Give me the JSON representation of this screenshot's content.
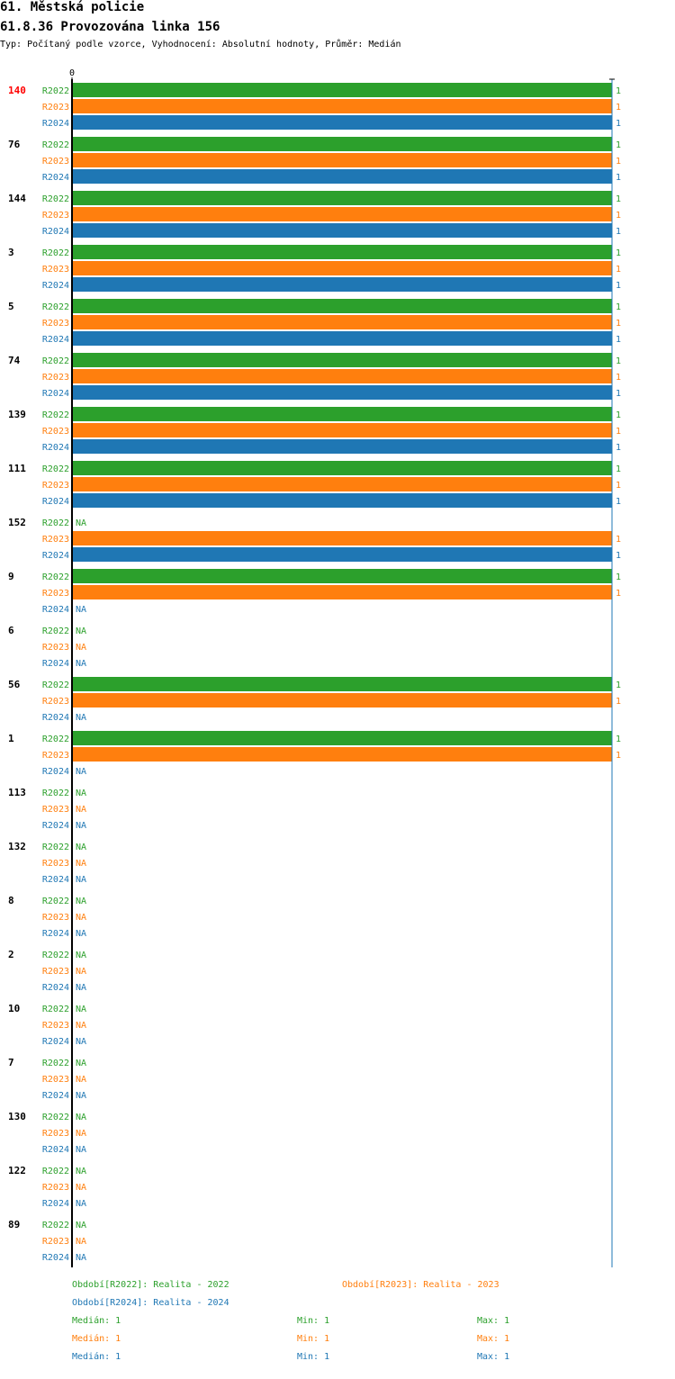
{
  "header": {
    "title": "61. Městská policie",
    "subtitle": "61.8.36 Provozována linka 156",
    "info": "Typ: Počítaný podle vzorce, Vyhodnocení: Absolutní hodnoty, Průměr: Medián"
  },
  "colors": {
    "R2022": "#2ca02c",
    "R2023": "#ff7f0e",
    "R2024": "#1f77b4",
    "highlight": "#ff0000"
  },
  "chart_data": {
    "type": "bar",
    "orientation": "horizontal",
    "x_tick_label": "0",
    "xlim": [
      0,
      1
    ],
    "series_names": [
      "R2022",
      "R2023",
      "R2024"
    ],
    "highlight_category": "140",
    "missing_label": "NA",
    "groups": [
      {
        "category": "140",
        "values": [
          1,
          1,
          1
        ]
      },
      {
        "category": "76",
        "values": [
          1,
          1,
          1
        ]
      },
      {
        "category": "144",
        "values": [
          1,
          1,
          1
        ]
      },
      {
        "category": "3",
        "values": [
          1,
          1,
          1
        ]
      },
      {
        "category": "5",
        "values": [
          1,
          1,
          1
        ]
      },
      {
        "category": "74",
        "values": [
          1,
          1,
          1
        ]
      },
      {
        "category": "139",
        "values": [
          1,
          1,
          1
        ]
      },
      {
        "category": "111",
        "values": [
          1,
          1,
          1
        ]
      },
      {
        "category": "152",
        "values": [
          null,
          1,
          1
        ]
      },
      {
        "category": "9",
        "values": [
          1,
          1,
          null
        ]
      },
      {
        "category": "6",
        "values": [
          null,
          null,
          null
        ]
      },
      {
        "category": "56",
        "values": [
          1,
          1,
          null
        ]
      },
      {
        "category": "1",
        "values": [
          1,
          1,
          null
        ]
      },
      {
        "category": "113",
        "values": [
          null,
          null,
          null
        ]
      },
      {
        "category": "132",
        "values": [
          null,
          null,
          null
        ]
      },
      {
        "category": "8",
        "values": [
          null,
          null,
          null
        ]
      },
      {
        "category": "2",
        "values": [
          null,
          null,
          null
        ]
      },
      {
        "category": "10",
        "values": [
          null,
          null,
          null
        ]
      },
      {
        "category": "7",
        "values": [
          null,
          null,
          null
        ]
      },
      {
        "category": "130",
        "values": [
          null,
          null,
          null
        ]
      },
      {
        "category": "122",
        "values": [
          null,
          null,
          null
        ]
      },
      {
        "category": "89",
        "values": [
          null,
          null,
          null
        ]
      }
    ]
  },
  "legend": {
    "periods": [
      {
        "text": "Období[R2022]: Realita - 2022",
        "series": "R2022"
      },
      {
        "text": "Období[R2023]: Realita - 2023",
        "series": "R2023"
      },
      {
        "text": "Období[R2024]: Realita - 2024",
        "series": "R2024"
      }
    ],
    "stats": [
      {
        "series": "R2022",
        "median": "Medián: 1",
        "min": "Min: 1",
        "max": "Max: 1"
      },
      {
        "series": "R2023",
        "median": "Medián: 1",
        "min": "Min: 1",
        "max": "Max: 1"
      },
      {
        "series": "R2024",
        "median": "Medián: 1",
        "min": "Min: 1",
        "max": "Max: 1"
      }
    ]
  }
}
